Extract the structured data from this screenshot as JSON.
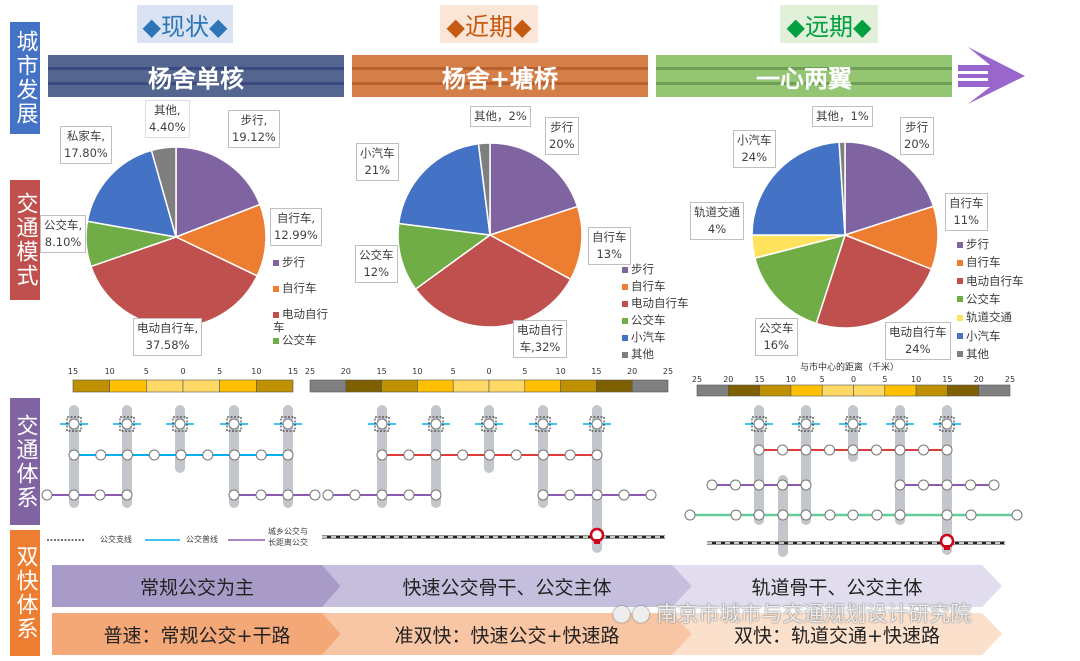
{
  "side_labels": {
    "city": "城市发展",
    "mode": "交通模式",
    "system": "交通体系",
    "double": "双快体系"
  },
  "side_colors": {
    "city": "#4472c4",
    "mode": "#c0504d",
    "system": "#8064a2",
    "double": "#ed7d31"
  },
  "phases": [
    {
      "tag": "◆现状◆",
      "tag_color": "#2e75b6",
      "tag_bg": "#dae3f3",
      "banner": "杨舍单核",
      "banner_color": "#546690"
    },
    {
      "tag": "◆近期◆",
      "tag_color": "#c55a11",
      "tag_bg": "#fbe5d6",
      "banner": "杨舍+塘桥",
      "banner_color": "#d57f48"
    },
    {
      "tag": "◆远期◆",
      "tag_color": "#00a040",
      "tag_bg": "#e2f0d9",
      "banner": "一心两翼",
      "banner_color": "#93c572"
    }
  ],
  "arrow_color": "#9966cc",
  "mode_colors": {
    "步行": "#8064a2",
    "自行车": "#ed7d31",
    "电动自行车": "#c0504d",
    "公交车": "#70ad47",
    "私家车": "#4472c4",
    "小汽车": "#4472c4",
    "轨道交通": "#ffe25e",
    "其他": "#7f7f7f"
  },
  "chart_data": [
    {
      "type": "pie",
      "categories": [
        "步行",
        "自行车",
        "电动自行车",
        "公交车",
        "私家车",
        "其他"
      ],
      "values": [
        19.12,
        12.99,
        37.58,
        8.1,
        17.8,
        4.4
      ],
      "data_labels": [
        "步行,\n19.12%",
        "自行车,\n12.99%",
        "电动自行车,\n37.58%",
        "公交车,\n8.10%",
        "私家车,\n17.80%",
        "其他,\n4.40%"
      ],
      "legend": [
        "步行",
        "自行车",
        "电动自行\n车",
        "公交车"
      ]
    },
    {
      "type": "pie",
      "categories": [
        "步行",
        "自行车",
        "电动自行车",
        "公交车",
        "小汽车",
        "其他"
      ],
      "values": [
        20,
        13,
        32,
        12,
        21,
        2
      ],
      "data_labels": [
        "步行\n20%",
        "自行车\n13%",
        "电动自行\n车,32%",
        "公交车\n12%",
        "小汽车\n21%",
        "其他，2%"
      ],
      "legend": [
        "步行",
        "自行车",
        "电动自行车",
        "公交车",
        "小汽车",
        "其他"
      ]
    },
    {
      "type": "pie",
      "categories": [
        "步行",
        "自行车",
        "电动自行车",
        "公交车",
        "轨道交通",
        "小汽车",
        "其他"
      ],
      "values": [
        20,
        11,
        24,
        16,
        4,
        24,
        1
      ],
      "data_labels": [
        "步行\n20%",
        "自行车\n11%",
        "电动自行车\n24%",
        "公交车\n16%",
        "轨道交通\n4%",
        "小汽车\n24%",
        "其他，1%"
      ],
      "legend": [
        "步行",
        "自行车",
        "电动自行车",
        "公交车",
        "轨道交通",
        "小汽车",
        "其他"
      ]
    }
  ],
  "distance_scales": [
    {
      "ticks": [
        "15",
        "10",
        "5",
        "0",
        "5",
        "10",
        "15"
      ],
      "colors": [
        "#bf9000",
        "#ffc000",
        "#ffd966",
        "#ffd966",
        "#ffc000",
        "#bf9000"
      ]
    },
    {
      "ticks": [
        "25",
        "20",
        "15",
        "10",
        "5",
        "0",
        "5",
        "10",
        "15",
        "20",
        "25"
      ],
      "colors": [
        "#808080",
        "#7f6000",
        "#bf9000",
        "#ffc000",
        "#ffd966",
        "#ffd966",
        "#ffc000",
        "#bf9000",
        "#7f6000",
        "#808080"
      ]
    },
    {
      "title": "与市中心的距离（千米）",
      "ticks": [
        "25",
        "20",
        "15",
        "10",
        "5",
        "0",
        "5",
        "10",
        "15",
        "20",
        "25"
      ],
      "colors": [
        "#808080",
        "#7f6000",
        "#bf9000",
        "#ffc000",
        "#ffd966",
        "#ffd966",
        "#ffc000",
        "#bf9000",
        "#7f6000",
        "#808080"
      ]
    }
  ],
  "network_legend": {
    "branch": "公交支线",
    "trunk": "公交普线",
    "rural": "城乡公交与\n长距离公交"
  },
  "line_colors": {
    "branch": "#00b0f0",
    "trunk": "#00b0f0",
    "express": "#e03c3c",
    "rural": "#8a5bb0",
    "rail": "#66cc99",
    "railway_icon": "#d0021b"
  },
  "bus_system": [
    "常规公交为主",
    "快速公交骨干、公交主体",
    "轨道骨干、公交主体"
  ],
  "speed_system": [
    "普速：常规公交+干路",
    "准双快：快速公交+快速路",
    "双快：轨道交通+快速路"
  ],
  "watermark": "南京市城市与交通规划设计研究院"
}
